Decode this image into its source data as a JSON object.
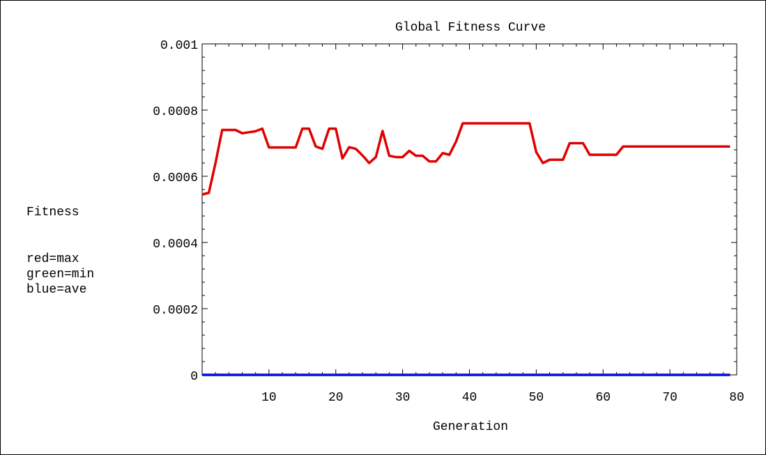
{
  "chart_data": {
    "type": "line",
    "title": "Global Fitness Curve",
    "xlabel": "Generation",
    "ylabel": "Fitness",
    "legend_notes": [
      "red=max",
      "green=min",
      "blue=ave"
    ],
    "xlim": [
      0,
      80
    ],
    "ylim": [
      0,
      0.001
    ],
    "x_ticks": [
      10,
      20,
      30,
      40,
      50,
      60,
      70,
      80
    ],
    "y_ticks": [
      0,
      0.0002,
      0.0004,
      0.0006,
      0.0008,
      0.001
    ],
    "y_tick_labels": [
      "0",
      "0.0002",
      "0.0004",
      "0.0006",
      "0.0008",
      "0.001"
    ],
    "grid": false,
    "series": [
      {
        "name": "max",
        "color": "#e00000",
        "x": [
          0,
          1,
          2,
          3,
          4,
          5,
          6,
          7,
          8,
          9,
          10,
          11,
          12,
          13,
          14,
          15,
          16,
          17,
          18,
          19,
          20,
          21,
          22,
          23,
          24,
          25,
          26,
          27,
          28,
          29,
          30,
          31,
          32,
          33,
          34,
          35,
          36,
          37,
          38,
          39,
          40,
          41,
          42,
          43,
          44,
          45,
          46,
          47,
          48,
          49,
          50,
          51,
          52,
          53,
          54,
          55,
          56,
          57,
          58,
          59,
          60,
          61,
          62,
          63,
          64,
          65,
          66,
          67,
          68,
          69,
          70,
          71,
          72,
          73,
          74,
          75,
          76,
          77,
          78,
          79
        ],
        "values": [
          0.000545,
          0.00055,
          0.00064,
          0.00074,
          0.00074,
          0.00074,
          0.00073,
          0.000733,
          0.000736,
          0.000744,
          0.000687,
          0.000687,
          0.000687,
          0.000687,
          0.000687,
          0.000744,
          0.000744,
          0.00069,
          0.000683,
          0.000744,
          0.000744,
          0.000654,
          0.000688,
          0.000683,
          0.000663,
          0.00064,
          0.000658,
          0.000737,
          0.000662,
          0.000658,
          0.000658,
          0.000677,
          0.000662,
          0.000662,
          0.000645,
          0.000645,
          0.00067,
          0.000665,
          0.000705,
          0.00076,
          0.00076,
          0.00076,
          0.00076,
          0.00076,
          0.00076,
          0.00076,
          0.00076,
          0.00076,
          0.00076,
          0.00076,
          0.000673,
          0.00064,
          0.00065,
          0.00065,
          0.00065,
          0.0007,
          0.0007,
          0.0007,
          0.000665,
          0.000665,
          0.000665,
          0.000665,
          0.000665,
          0.00069,
          0.00069,
          0.00069,
          0.00069,
          0.00069,
          0.00069,
          0.00069,
          0.00069,
          0.00069,
          0.00069,
          0.00069,
          0.00069,
          0.00069,
          0.00069,
          0.00069,
          0.00069,
          0.00069
        ]
      },
      {
        "name": "min",
        "color": "#00a000",
        "x": [
          0,
          79
        ],
        "values": [
          0,
          0
        ]
      },
      {
        "name": "ave",
        "color": "#1010e0",
        "x": [
          0,
          79
        ],
        "values": [
          0,
          0
        ]
      }
    ]
  }
}
